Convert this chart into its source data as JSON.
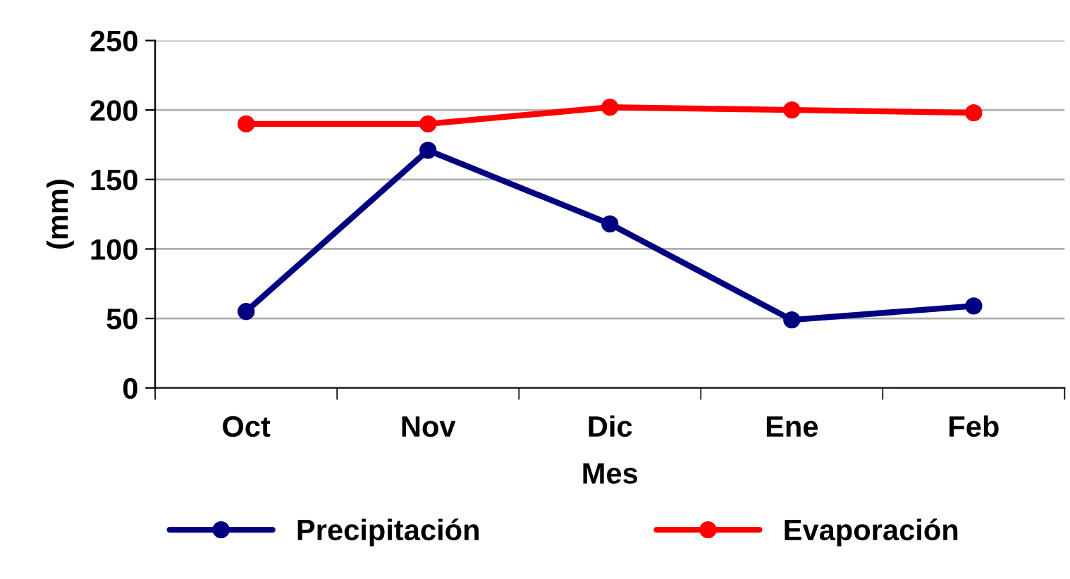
{
  "chart_data": {
    "type": "line",
    "xlabel": "Mes",
    "ylabel": "(mm)",
    "categories": [
      "Oct",
      "Nov",
      "Dic",
      "Ene",
      "Feb"
    ],
    "series": [
      {
        "name": "Precipitación",
        "color": "#000080",
        "values": [
          55,
          171,
          118,
          49,
          59
        ]
      },
      {
        "name": "Evaporación",
        "color": "#ff0000",
        "values": [
          190,
          190,
          202,
          200,
          198
        ]
      }
    ],
    "ylim": [
      0,
      250
    ],
    "yticks": [
      0,
      50,
      100,
      150,
      200,
      250
    ],
    "grid": "y",
    "legend": "bottom",
    "marker": "circle",
    "line_style": "solid"
  }
}
